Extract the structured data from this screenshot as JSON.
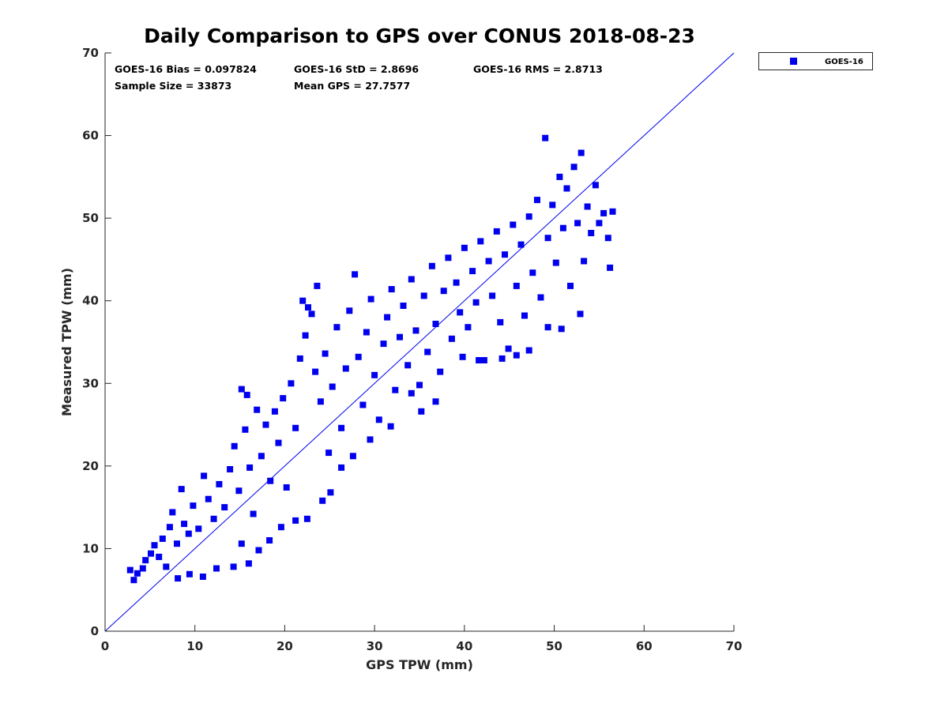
{
  "chart_data": {
    "type": "scatter",
    "title": "Daily Comparison to GPS over CONUS 2018-08-23",
    "xlabel": "GPS TPW (mm)",
    "ylabel": "Measured TPW (mm)",
    "xlim": [
      0,
      70
    ],
    "ylim": [
      0,
      70
    ],
    "xticks": [
      "0",
      "10",
      "20",
      "30",
      "40",
      "50",
      "60",
      "70"
    ],
    "yticks": [
      "0",
      "10",
      "20",
      "30",
      "40",
      "50",
      "60",
      "70"
    ],
    "grid": false,
    "legend_position": "outside-top-right",
    "reference_line": {
      "type": "one-to-one",
      "color": "#0000ee"
    },
    "stats": [
      "GOES-16 Bias = 0.097824",
      "GOES-16 StD = 2.8696",
      "GOES-16 RMS = 2.8713",
      "Sample Size = 33873",
      "Mean GPS = 27.7577"
    ],
    "series": [
      {
        "name": "GOES-16",
        "color": "#0000ee",
        "marker": "square",
        "points": [
          [
            2.8,
            7.4
          ],
          [
            3.2,
            6.2
          ],
          [
            3.6,
            7.0
          ],
          [
            4.2,
            7.6
          ],
          [
            4.5,
            8.6
          ],
          [
            5.1,
            9.4
          ],
          [
            5.5,
            10.4
          ],
          [
            6.0,
            9.0
          ],
          [
            6.4,
            11.2
          ],
          [
            6.8,
            7.8
          ],
          [
            7.2,
            12.6
          ],
          [
            7.5,
            14.4
          ],
          [
            8.0,
            10.6
          ],
          [
            8.5,
            17.2
          ],
          [
            8.8,
            13.0
          ],
          [
            9.3,
            11.8
          ],
          [
            9.8,
            15.2
          ],
          [
            10.4,
            12.4
          ],
          [
            11.0,
            18.8
          ],
          [
            11.5,
            16.0
          ],
          [
            12.1,
            13.6
          ],
          [
            12.7,
            17.8
          ],
          [
            13.3,
            15.0
          ],
          [
            13.9,
            19.6
          ],
          [
            14.4,
            22.4
          ],
          [
            14.9,
            17.0
          ],
          [
            15.2,
            10.6
          ],
          [
            15.6,
            24.4
          ],
          [
            16.1,
            19.8
          ],
          [
            16.5,
            14.2
          ],
          [
            15.2,
            29.3
          ],
          [
            15.8,
            28.6
          ],
          [
            16.9,
            26.8
          ],
          [
            17.4,
            21.2
          ],
          [
            17.9,
            25.0
          ],
          [
            18.4,
            18.2
          ],
          [
            18.9,
            26.6
          ],
          [
            19.3,
            22.8
          ],
          [
            19.8,
            28.2
          ],
          [
            20.2,
            17.4
          ],
          [
            20.7,
            30.0
          ],
          [
            21.2,
            24.6
          ],
          [
            21.7,
            33.0
          ],
          [
            22.0,
            40.0
          ],
          [
            22.6,
            39.2
          ],
          [
            22.3,
            35.8
          ],
          [
            23.0,
            38.4
          ],
          [
            23.6,
            41.8
          ],
          [
            23.4,
            31.4
          ],
          [
            24.0,
            27.8
          ],
          [
            24.5,
            33.6
          ],
          [
            24.9,
            21.6
          ],
          [
            25.3,
            29.6
          ],
          [
            25.8,
            36.8
          ],
          [
            26.3,
            24.6
          ],
          [
            26.8,
            31.8
          ],
          [
            27.2,
            38.8
          ],
          [
            27.8,
            43.2
          ],
          [
            28.2,
            33.2
          ],
          [
            28.7,
            27.4
          ],
          [
            29.1,
            36.2
          ],
          [
            29.6,
            40.2
          ],
          [
            30.0,
            31.0
          ],
          [
            30.5,
            25.6
          ],
          [
            31.0,
            34.8
          ],
          [
            31.4,
            38.0
          ],
          [
            31.9,
            41.4
          ],
          [
            32.3,
            29.2
          ],
          [
            32.8,
            35.6
          ],
          [
            33.2,
            39.4
          ],
          [
            33.7,
            32.2
          ],
          [
            34.1,
            42.6
          ],
          [
            34.6,
            36.4
          ],
          [
            35.0,
            29.8
          ],
          [
            35.5,
            40.6
          ],
          [
            35.9,
            33.8
          ],
          [
            36.4,
            44.2
          ],
          [
            36.8,
            37.2
          ],
          [
            37.3,
            31.4
          ],
          [
            37.7,
            41.2
          ],
          [
            38.2,
            45.2
          ],
          [
            38.6,
            35.4
          ],
          [
            39.1,
            42.2
          ],
          [
            39.5,
            38.6
          ],
          [
            40.0,
            46.4
          ],
          [
            40.4,
            36.8
          ],
          [
            40.9,
            43.6
          ],
          [
            41.3,
            39.8
          ],
          [
            41.8,
            47.2
          ],
          [
            42.2,
            32.8
          ],
          [
            42.7,
            44.8
          ],
          [
            43.1,
            40.6
          ],
          [
            43.6,
            48.4
          ],
          [
            44.0,
            37.4
          ],
          [
            44.5,
            45.6
          ],
          [
            44.9,
            34.2
          ],
          [
            45.4,
            49.2
          ],
          [
            45.8,
            41.8
          ],
          [
            46.3,
            46.8
          ],
          [
            46.7,
            38.2
          ],
          [
            47.2,
            50.2
          ],
          [
            47.6,
            43.4
          ],
          [
            48.1,
            52.2
          ],
          [
            48.5,
            40.4
          ],
          [
            49.0,
            59.7
          ],
          [
            49.3,
            47.6
          ],
          [
            49.8,
            51.6
          ],
          [
            50.2,
            44.6
          ],
          [
            50.6,
            55.0
          ],
          [
            51.0,
            48.8
          ],
          [
            51.4,
            53.6
          ],
          [
            51.8,
            41.8
          ],
          [
            52.2,
            56.2
          ],
          [
            52.6,
            49.4
          ],
          [
            53.0,
            57.9
          ],
          [
            53.3,
            44.8
          ],
          [
            53.7,
            51.4
          ],
          [
            54.1,
            48.2
          ],
          [
            54.6,
            54.0
          ],
          [
            55.0,
            49.4
          ],
          [
            55.5,
            50.6
          ],
          [
            56.0,
            47.6
          ],
          [
            56.5,
            50.8
          ],
          [
            56.2,
            44.0
          ],
          [
            52.9,
            38.4
          ],
          [
            50.8,
            36.6
          ],
          [
            49.3,
            36.8
          ],
          [
            47.2,
            34.0
          ],
          [
            45.8,
            33.4
          ],
          [
            44.2,
            33.0
          ],
          [
            41.6,
            32.8
          ],
          [
            39.8,
            33.2
          ],
          [
            36.8,
            27.8
          ],
          [
            35.2,
            26.6
          ],
          [
            34.1,
            28.8
          ],
          [
            31.8,
            24.8
          ],
          [
            29.5,
            23.2
          ],
          [
            27.6,
            21.2
          ],
          [
            26.3,
            19.8
          ],
          [
            25.1,
            16.8
          ],
          [
            24.2,
            15.8
          ],
          [
            22.5,
            13.6
          ],
          [
            21.2,
            13.4
          ],
          [
            19.6,
            12.6
          ],
          [
            18.3,
            11.0
          ],
          [
            17.1,
            9.8
          ],
          [
            16.0,
            8.2
          ],
          [
            14.3,
            7.8
          ],
          [
            12.4,
            7.6
          ],
          [
            10.9,
            6.6
          ],
          [
            9.4,
            6.9
          ],
          [
            8.1,
            6.4
          ]
        ]
      }
    ]
  }
}
